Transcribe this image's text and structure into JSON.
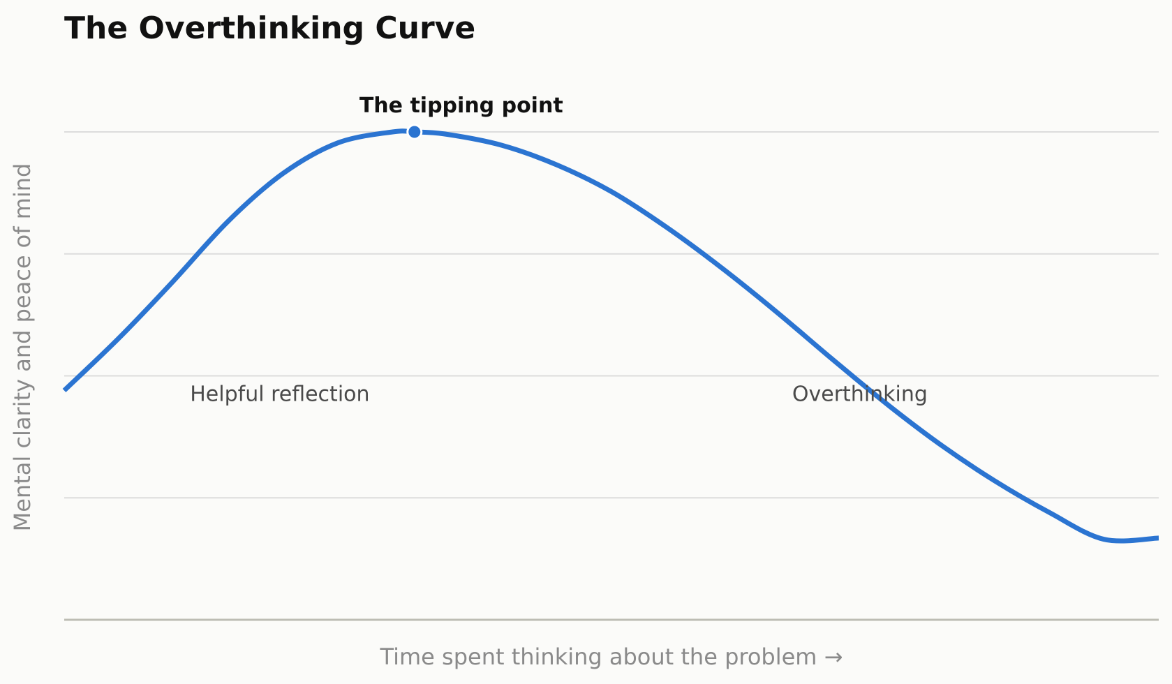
{
  "colors": {
    "background": "#fbfbf9",
    "curve": "#2b74d1",
    "gridline": "#dcdcdc",
    "baseline": "#bdbdb4"
  },
  "chart_data": {
    "type": "line",
    "title": "The Overthinking Curve",
    "xlabel": "Time spent thinking about the problem →",
    "ylabel": "Mental clarity and peace of mind",
    "xlim": [
      0,
      10
    ],
    "ylim": [
      0,
      4
    ],
    "grid": true,
    "y_gridlines": [
      1,
      2,
      3,
      4
    ],
    "x_ticks": [],
    "y_ticks": [],
    "series": [
      {
        "x": [
          0,
          0.5,
          1.0,
          1.5,
          2.0,
          2.5,
          3.0,
          3.2,
          3.5,
          4.0,
          4.5,
          5.0,
          5.5,
          6.0,
          6.5,
          7.0,
          7.5,
          8.0,
          8.5,
          9.0,
          9.5,
          10.0
        ],
        "values": [
          1.88,
          2.31,
          2.78,
          3.27,
          3.66,
          3.91,
          4.0,
          4.0,
          3.98,
          3.89,
          3.73,
          3.51,
          3.22,
          2.89,
          2.53,
          2.15,
          1.78,
          1.44,
          1.14,
          0.88,
          0.66,
          0.67
        ]
      }
    ],
    "highlight_point": {
      "x": 3.2,
      "y": 4.0,
      "label": "The tipping point"
    },
    "regions": [
      {
        "label": "Helpful reflection",
        "x": 1.97,
        "y": 1.85
      },
      {
        "label": "Overthinking",
        "x": 7.27,
        "y": 1.85
      }
    ]
  }
}
